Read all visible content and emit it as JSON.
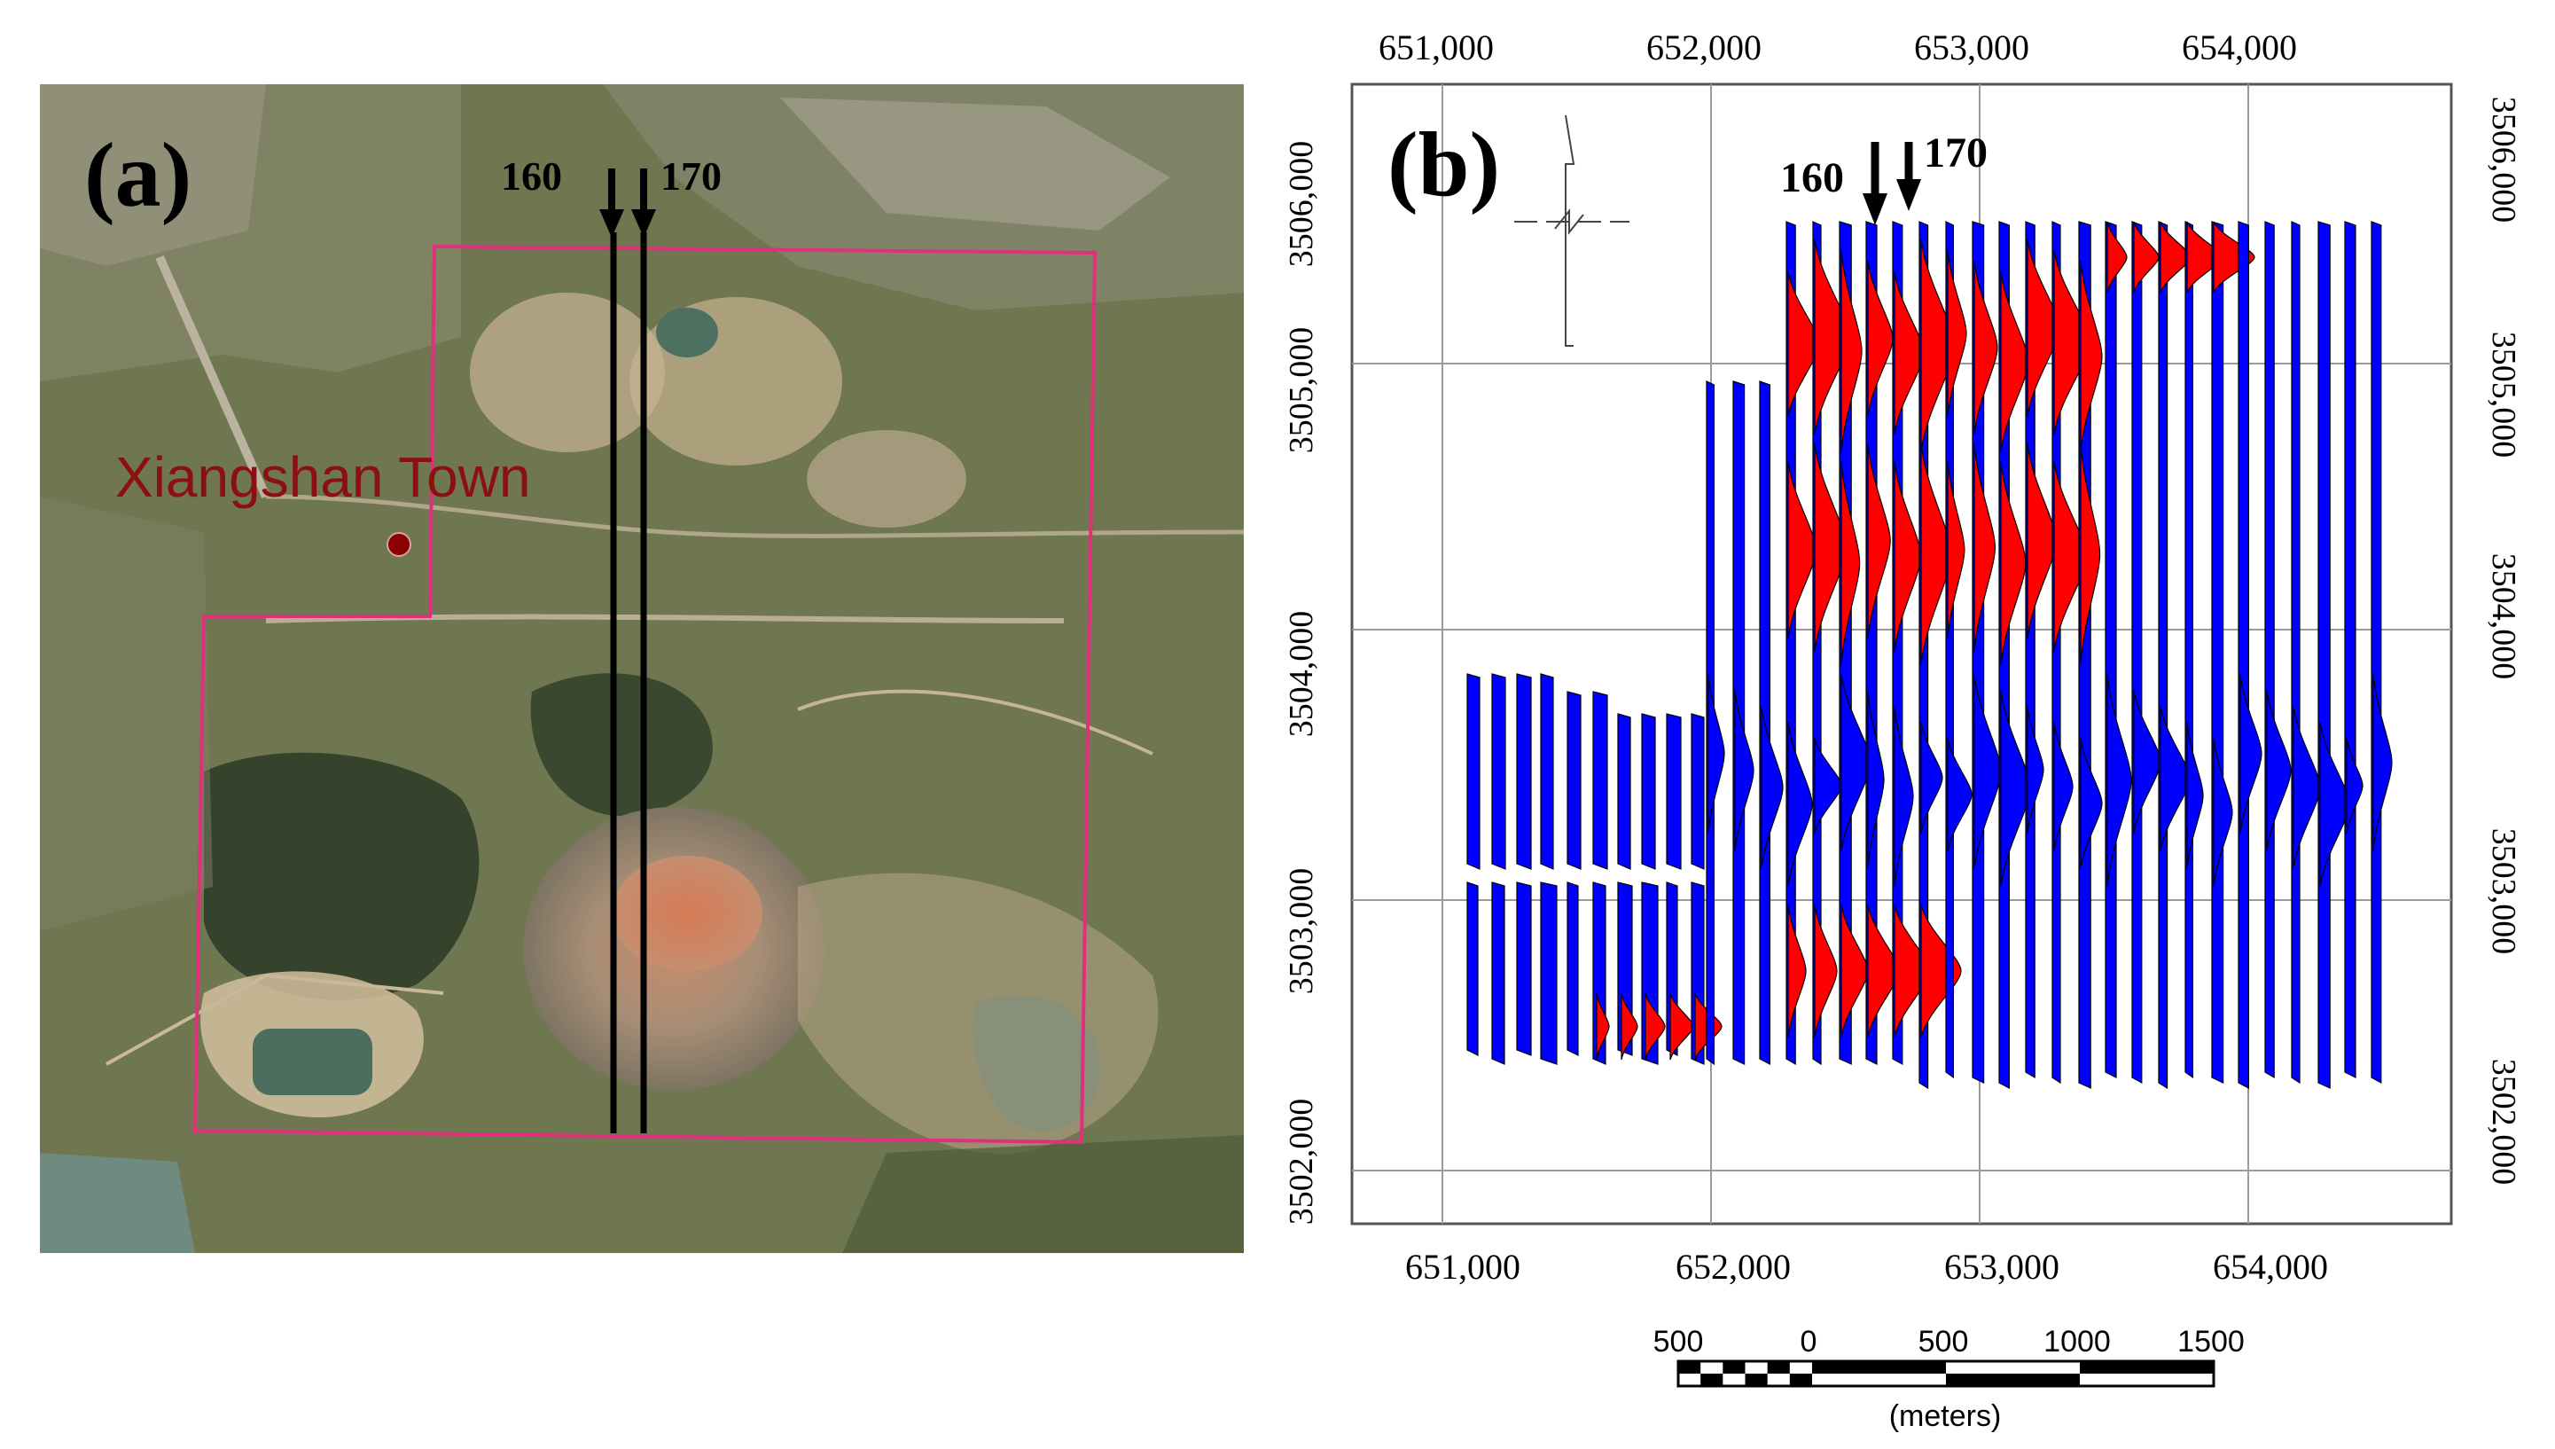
{
  "panel_a": {
    "label": "(a)",
    "town_label": "Xiangshan Town",
    "profile_labels": [
      "160",
      "170"
    ],
    "colors": {
      "survey_boundary": "#e0307a",
      "town_marker": "#8b0000",
      "town_text": "#8b1010",
      "profile_line": "#000000"
    }
  },
  "panel_b": {
    "label": "(b)",
    "profile_labels": [
      "160",
      "170"
    ],
    "x_ticks": [
      "651,000",
      "652,000",
      "653,000",
      "654,000"
    ],
    "y_ticks_left": [
      "3506,000",
      "3505,000",
      "3504,000",
      "3503,000",
      "3502,000"
    ],
    "y_ticks_right": [
      "3506,000",
      "3505,000",
      "3504,000",
      "3503,000",
      "3502,000"
    ],
    "x_tick_values": [
      651000,
      652000,
      653000,
      654000
    ],
    "y_tick_values": [
      3506000,
      3505000,
      3504000,
      3503000,
      3502000
    ],
    "colors": {
      "positive": "#ff0000",
      "negative": "#0000ff",
      "grid": "#999999",
      "frame": "#555555"
    }
  },
  "scale_bar": {
    "labels": [
      "500",
      "0",
      "500",
      "1000",
      "1500"
    ],
    "unit": "(meters)"
  }
}
